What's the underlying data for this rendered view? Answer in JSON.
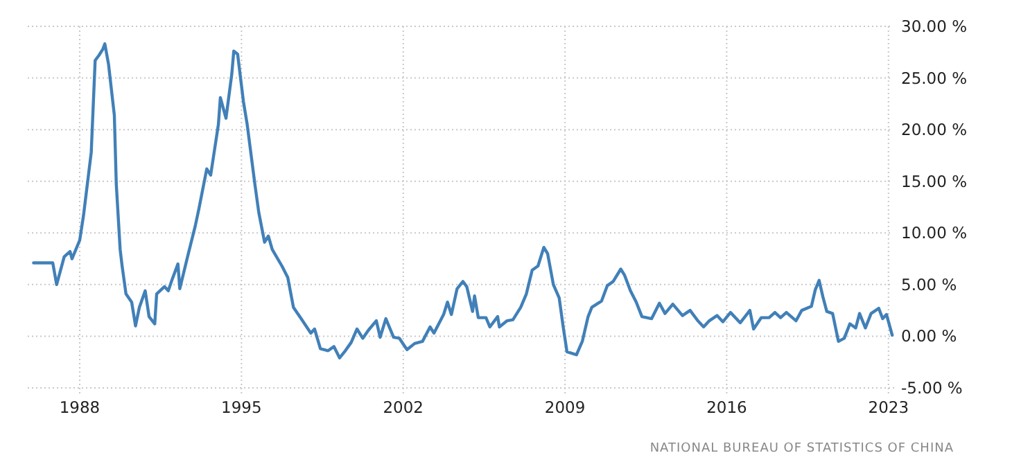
{
  "chart_data": {
    "type": "line",
    "annotations": [
      "NATIONAL BUREAU OF STATISTICS OF CHINA"
    ],
    "x": [
      "1986-01",
      "1986-11",
      "1987-01",
      "1987-05",
      "1987-08",
      "1987-09",
      "1988-01",
      "1988-03",
      "1988-07",
      "1988-09",
      "1988-11",
      "1989-01",
      "1989-02",
      "1989-04",
      "1989-07",
      "1989-08",
      "1989-10",
      "1989-11",
      "1990-01",
      "1990-04",
      "1990-06",
      "1990-08",
      "1990-11",
      "1991-01",
      "1991-04",
      "1991-05",
      "1991-09",
      "1991-11",
      "1992-01",
      "1992-04",
      "1992-05",
      "1992-09",
      "1993-01",
      "1993-03",
      "1993-07",
      "1993-09",
      "1994-01",
      "1994-02",
      "1994-05",
      "1994-08",
      "1994-09",
      "1994-11",
      "1995-02",
      "1995-04",
      "1995-08",
      "1995-10",
      "1996-01",
      "1996-03",
      "1996-05",
      "1996-10",
      "1997-01",
      "1997-04",
      "1997-08",
      "1998-01",
      "1998-03",
      "1998-06",
      "1998-10",
      "1999-01",
      "1999-04",
      "1999-07",
      "1999-10",
      "2000-01",
      "2000-04",
      "2000-07",
      "2000-11",
      "2001-01",
      "2001-04",
      "2001-08",
      "2001-11",
      "2002-03",
      "2002-07",
      "2002-11",
      "2003-03",
      "2003-05",
      "2003-10",
      "2003-12",
      "2004-02",
      "2004-05",
      "2004-08",
      "2004-10",
      "2005-01",
      "2005-02",
      "2005-04",
      "2005-08",
      "2005-10",
      "2006-02",
      "2006-03",
      "2006-07",
      "2006-10",
      "2007-02",
      "2007-05",
      "2007-08",
      "2007-11",
      "2008-02",
      "2008-04",
      "2008-07",
      "2008-10",
      "2008-12",
      "2009-02",
      "2009-07",
      "2009-10",
      "2010-01",
      "2010-03",
      "2010-08",
      "2010-11",
      "2011-02",
      "2011-06",
      "2011-08",
      "2011-11",
      "2012-02",
      "2012-05",
      "2012-10",
      "2013-02",
      "2013-05",
      "2013-09",
      "2014-02",
      "2014-06",
      "2014-10",
      "2015-01",
      "2015-04",
      "2015-08",
      "2015-11",
      "2016-03",
      "2016-08",
      "2017-01",
      "2017-03",
      "2017-07",
      "2017-11",
      "2018-02",
      "2018-05",
      "2018-08",
      "2019-01",
      "2019-04",
      "2019-09",
      "2019-11",
      "2020-01",
      "2020-03",
      "2020-05",
      "2020-08",
      "2020-11",
      "2021-02",
      "2021-05",
      "2021-08",
      "2021-10",
      "2022-01",
      "2022-04",
      "2022-08",
      "2022-10",
      "2022-12",
      "2023-03"
    ],
    "series": [
      {
        "color": "#4180b8",
        "values": [
          7.1,
          7.1,
          5.0,
          7.7,
          8.2,
          7.5,
          9.3,
          11.7,
          17.8,
          26.7,
          27.2,
          27.8,
          28.3,
          26.3,
          21.4,
          14.7,
          8.4,
          6.8,
          4.1,
          3.3,
          1.0,
          2.8,
          4.4,
          1.9,
          1.2,
          4.1,
          4.8,
          4.4,
          5.5,
          7.0,
          4.6,
          7.7,
          10.7,
          12.4,
          16.2,
          15.6,
          20.5,
          23.1,
          21.1,
          25.4,
          27.6,
          27.3,
          22.7,
          20.5,
          14.7,
          12.0,
          9.1,
          9.7,
          8.4,
          6.8,
          5.7,
          2.8,
          1.7,
          0.3,
          0.7,
          -1.2,
          -1.4,
          -1.0,
          -2.1,
          -1.4,
          -0.6,
          0.7,
          -0.2,
          0.6,
          1.5,
          -0.1,
          1.7,
          -0.1,
          -0.2,
          -1.3,
          -0.7,
          -0.5,
          0.9,
          0.3,
          2.1,
          3.3,
          2.1,
          4.6,
          5.3,
          4.8,
          2.4,
          3.9,
          1.8,
          1.8,
          0.9,
          1.9,
          0.9,
          1.5,
          1.6,
          2.8,
          4.1,
          6.4,
          6.8,
          8.6,
          8.0,
          5.0,
          3.7,
          1.0,
          -1.5,
          -1.8,
          -0.5,
          1.9,
          2.8,
          3.4,
          4.9,
          5.3,
          6.5,
          5.9,
          4.4,
          3.3,
          1.9,
          1.7,
          3.2,
          2.2,
          3.1,
          2.0,
          2.5,
          1.5,
          0.9,
          1.5,
          2.0,
          1.4,
          2.3,
          1.3,
          2.5,
          0.7,
          1.8,
          1.8,
          2.3,
          1.8,
          2.3,
          1.5,
          2.5,
          2.9,
          4.5,
          5.4,
          3.8,
          2.4,
          2.2,
          -0.5,
          -0.2,
          1.2,
          0.8,
          2.2,
          0.8,
          2.2,
          2.7,
          1.7,
          2.1,
          0.1
        ]
      }
    ],
    "xlim": [
      "1985-10",
      "2023-04"
    ],
    "xticks": [
      "1988",
      "1995",
      "2002",
      "2009",
      "2016",
      "2023"
    ],
    "ylim": [
      -5,
      30
    ],
    "yticks": [
      {
        "value": -5,
        "label": "-5.00 %"
      },
      {
        "value": 0,
        "label": "0.00 %"
      },
      {
        "value": 5,
        "label": "5.00 %"
      },
      {
        "value": 10,
        "label": "10.00 %"
      },
      {
        "value": 15,
        "label": "15.00 %"
      },
      {
        "value": 20,
        "label": "20.00 %"
      },
      {
        "value": 25,
        "label": "25.00 %"
      },
      {
        "value": 30,
        "label": "30.00 %"
      }
    ],
    "grid": true,
    "line_style": "solid",
    "marker": "none"
  }
}
